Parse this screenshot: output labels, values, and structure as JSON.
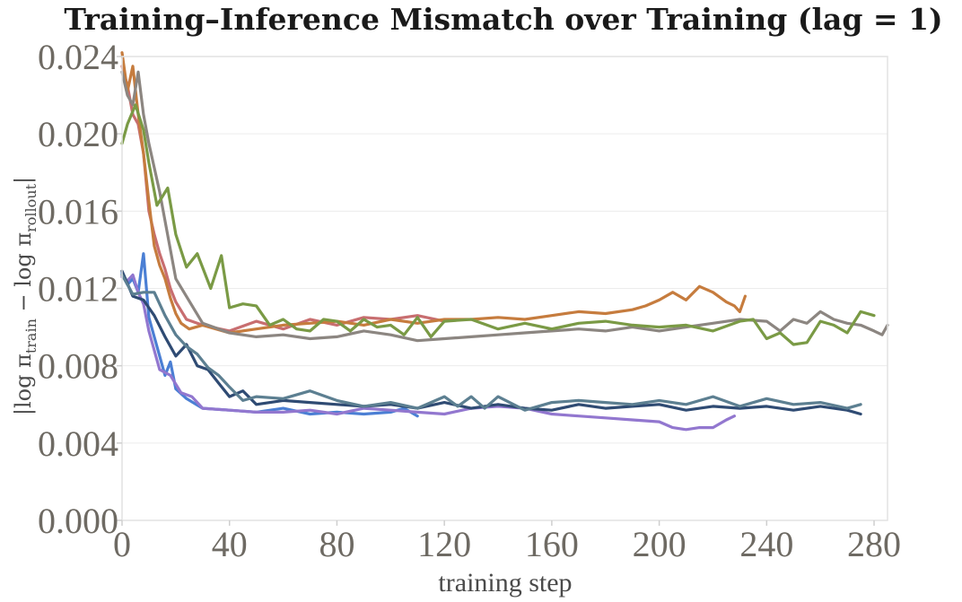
{
  "chart_data": {
    "type": "line",
    "title": "Training–Inference Mismatch over Training (lag = 1)",
    "xlabel": "training step",
    "ylabel": {
      "prefix": "|log π",
      "sub1": "train",
      "middle": " − log π",
      "sub2": "rollout",
      "suffix": "|"
    },
    "xlim": [
      0,
      285
    ],
    "ylim": [
      0,
      0.024
    ],
    "xticks": [
      "0",
      "40",
      "80",
      "120",
      "160",
      "200",
      "240",
      "280"
    ],
    "yticks": [
      "0.000",
      "0.004",
      "0.008",
      "0.012",
      "0.016",
      "0.020",
      "0.024"
    ],
    "grid": true,
    "series": [
      {
        "color": "#c86e70",
        "x": [
          0,
          2,
          4,
          6,
          8,
          10,
          12,
          14,
          16,
          18,
          20,
          24,
          30,
          40,
          50,
          60,
          70,
          80,
          90,
          100,
          110,
          120
        ],
        "values": [
          0.0235,
          0.0225,
          0.021,
          0.0205,
          0.019,
          0.016,
          0.0148,
          0.0138,
          0.013,
          0.012,
          0.0113,
          0.0104,
          0.0101,
          0.0098,
          0.0103,
          0.0099,
          0.0104,
          0.0101,
          0.0105,
          0.0104,
          0.0106,
          0.0103
        ]
      },
      {
        "color": "#c67c3e",
        "x": [
          0,
          2,
          4,
          6,
          8,
          10,
          12,
          14,
          16,
          18,
          20,
          22,
          25,
          30,
          40,
          50,
          60,
          70,
          80,
          90,
          100,
          110,
          120,
          130,
          140,
          150,
          160,
          170,
          180,
          190,
          195,
          200,
          205,
          210,
          215,
          220,
          225,
          228,
          230,
          232
        ],
        "values": [
          0.0242,
          0.0222,
          0.0235,
          0.021,
          0.019,
          0.0165,
          0.0142,
          0.0132,
          0.0125,
          0.0115,
          0.0107,
          0.0102,
          0.0099,
          0.0101,
          0.0097,
          0.0099,
          0.0101,
          0.0102,
          0.0103,
          0.0101,
          0.0104,
          0.0102,
          0.0104,
          0.0104,
          0.0105,
          0.0104,
          0.0106,
          0.0108,
          0.0107,
          0.0109,
          0.0111,
          0.0114,
          0.0118,
          0.0114,
          0.0121,
          0.0118,
          0.0113,
          0.0111,
          0.0108,
          0.0116
        ]
      },
      {
        "color": "#8c8681",
        "x": [
          0,
          2,
          4,
          6,
          8,
          10,
          14,
          20,
          30,
          40,
          50,
          60,
          70,
          80,
          90,
          100,
          110,
          120,
          130,
          140,
          150,
          160,
          170,
          180,
          190,
          200,
          210,
          220,
          230,
          240,
          245,
          250,
          255,
          260,
          265,
          270,
          275,
          280,
          283,
          285
        ],
        "values": [
          0.0232,
          0.022,
          0.0215,
          0.0232,
          0.021,
          0.0195,
          0.017,
          0.0125,
          0.0102,
          0.0097,
          0.0095,
          0.0096,
          0.0094,
          0.0095,
          0.0098,
          0.0096,
          0.0093,
          0.0094,
          0.0095,
          0.0096,
          0.0097,
          0.0098,
          0.0099,
          0.0098,
          0.01,
          0.0098,
          0.01,
          0.0102,
          0.0104,
          0.0103,
          0.0098,
          0.0104,
          0.0102,
          0.0108,
          0.0104,
          0.0102,
          0.0101,
          0.0098,
          0.0096,
          0.0101
        ]
      },
      {
        "color": "#7a9a45",
        "x": [
          0,
          2,
          5,
          8,
          10,
          13,
          17,
          20,
          24,
          28,
          33,
          37,
          40,
          45,
          50,
          55,
          60,
          65,
          70,
          75,
          80,
          85,
          90,
          95,
          100,
          105,
          110,
          115,
          120,
          130,
          140,
          150,
          160,
          170,
          180,
          190,
          200,
          210,
          220,
          230,
          235,
          240,
          245,
          250,
          255,
          260,
          265,
          270,
          275,
          280
        ],
        "values": [
          0.0195,
          0.0205,
          0.0215,
          0.0202,
          0.0185,
          0.0163,
          0.0172,
          0.0148,
          0.0131,
          0.0138,
          0.012,
          0.0137,
          0.011,
          0.0112,
          0.0111,
          0.0101,
          0.0104,
          0.0099,
          0.0098,
          0.0104,
          0.0103,
          0.0098,
          0.0104,
          0.01,
          0.0101,
          0.0096,
          0.0105,
          0.0095,
          0.0103,
          0.0104,
          0.0099,
          0.0102,
          0.0099,
          0.0102,
          0.0103,
          0.0101,
          0.01,
          0.0101,
          0.0098,
          0.0103,
          0.0104,
          0.0094,
          0.0097,
          0.0091,
          0.0092,
          0.0103,
          0.0101,
          0.0097,
          0.0108,
          0.0106
        ]
      },
      {
        "color": "#4b7fd4",
        "x": [
          0,
          2,
          4,
          6,
          8,
          10,
          12,
          14,
          16,
          18,
          20,
          24,
          30,
          40,
          50,
          60,
          70,
          80,
          90,
          100,
          105,
          110
        ],
        "values": [
          0.0128,
          0.0122,
          0.0125,
          0.0118,
          0.0138,
          0.0105,
          0.0095,
          0.0085,
          0.0075,
          0.0082,
          0.0068,
          0.0063,
          0.0058,
          0.0057,
          0.0056,
          0.0058,
          0.0055,
          0.0056,
          0.0055,
          0.0056,
          0.0058,
          0.0054
        ]
      },
      {
        "color": "#9277cf",
        "x": [
          0,
          2,
          4,
          6,
          8,
          10,
          14,
          18,
          22,
          26,
          30,
          40,
          50,
          60,
          70,
          80,
          90,
          100,
          110,
          120,
          130,
          140,
          150,
          160,
          170,
          180,
          190,
          200,
          205,
          210,
          215,
          220,
          225,
          228
        ],
        "values": [
          0.0126,
          0.0124,
          0.0127,
          0.0118,
          0.0112,
          0.0098,
          0.0078,
          0.0075,
          0.0066,
          0.0064,
          0.0058,
          0.0057,
          0.0056,
          0.0056,
          0.0057,
          0.0055,
          0.0058,
          0.0057,
          0.0056,
          0.0055,
          0.0058,
          0.0059,
          0.0058,
          0.0055,
          0.0054,
          0.0053,
          0.0052,
          0.0051,
          0.0048,
          0.0047,
          0.0048,
          0.0048,
          0.0052,
          0.0054
        ]
      },
      {
        "color": "#2f4b73",
        "x": [
          0,
          4,
          8,
          12,
          16,
          20,
          24,
          28,
          32,
          36,
          40,
          45,
          50,
          60,
          70,
          80,
          90,
          100,
          110,
          120,
          130,
          140,
          150,
          160,
          170,
          180,
          190,
          200,
          210,
          220,
          230,
          240,
          250,
          260,
          270,
          275
        ],
        "values": [
          0.0129,
          0.0116,
          0.0114,
          0.0106,
          0.0095,
          0.0085,
          0.0091,
          0.008,
          0.0078,
          0.0071,
          0.0064,
          0.0067,
          0.006,
          0.0062,
          0.0061,
          0.006,
          0.0059,
          0.006,
          0.0058,
          0.0061,
          0.0058,
          0.006,
          0.0058,
          0.0057,
          0.006,
          0.0058,
          0.0059,
          0.006,
          0.0057,
          0.0059,
          0.0058,
          0.0059,
          0.0057,
          0.0059,
          0.0057,
          0.0055
        ]
      },
      {
        "color": "#5c7f91",
        "x": [
          0,
          4,
          8,
          12,
          16,
          20,
          24,
          28,
          32,
          36,
          40,
          45,
          50,
          60,
          70,
          80,
          90,
          100,
          110,
          120,
          125,
          130,
          135,
          140,
          150,
          160,
          170,
          180,
          190,
          200,
          210,
          220,
          230,
          240,
          250,
          260,
          270,
          275
        ],
        "values": [
          0.0127,
          0.0117,
          0.0118,
          0.0118,
          0.0106,
          0.0096,
          0.009,
          0.0086,
          0.0079,
          0.0075,
          0.0069,
          0.0062,
          0.0064,
          0.0063,
          0.0067,
          0.0062,
          0.0059,
          0.0061,
          0.0058,
          0.0064,
          0.0059,
          0.0064,
          0.0058,
          0.0064,
          0.0057,
          0.0061,
          0.0062,
          0.0061,
          0.006,
          0.0062,
          0.006,
          0.0064,
          0.0059,
          0.0063,
          0.006,
          0.0061,
          0.0058,
          0.006
        ]
      }
    ]
  }
}
